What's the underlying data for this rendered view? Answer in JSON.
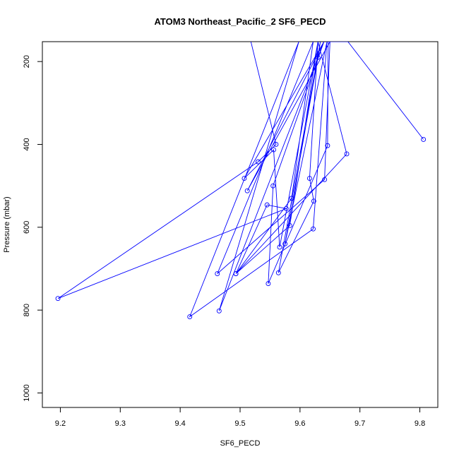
{
  "chart_data": {
    "type": "scatter",
    "title": "ATOM3 Northeast_Pacific_2 SF6_PECD",
    "xlabel": "SF6_PECD",
    "ylabel": "Pressure (mbar)",
    "xlim": [
      9.17,
      9.83
    ],
    "ylim": [
      1035,
      152
    ],
    "y_reversed": true,
    "x_ticks": [
      9.2,
      9.3,
      9.4,
      9.5,
      9.6,
      9.7,
      9.8
    ],
    "x_tick_labels": [
      "9.2",
      "9.3",
      "9.4",
      "9.5",
      "9.6",
      "9.7",
      "9.8"
    ],
    "y_ticks": [
      200,
      400,
      600,
      800,
      1000
    ],
    "y_tick_labels": [
      "200",
      "400",
      "600",
      "800",
      "1000"
    ],
    "grid": false,
    "series": [
      {
        "color": "#0000ff",
        "marker": "open-circle",
        "connected": true,
        "points": [
          [
            9.518,
            152
          ],
          [
            9.56,
            400
          ],
          [
            9.53,
            442
          ],
          [
            9.196,
            772
          ],
          [
            9.577,
            555
          ],
          [
            9.545,
            546
          ],
          [
            9.493,
            712
          ],
          [
            9.583,
            596
          ],
          [
            9.63,
            152
          ],
          [
            9.566,
            648
          ],
          [
            9.556,
            413
          ],
          [
            9.507,
            482
          ],
          [
            9.64,
            152
          ],
          [
            9.512,
            512
          ],
          [
            9.65,
            152
          ],
          [
            9.641,
            485
          ],
          [
            9.462,
            712
          ],
          [
            9.622,
            152
          ],
          [
            9.586,
            530
          ],
          [
            9.493,
            712
          ],
          [
            9.678,
            423
          ],
          [
            9.63,
            152
          ],
          [
            9.616,
            482
          ],
          [
            9.623,
            537
          ],
          [
            9.564,
            710
          ],
          [
            9.634,
            152
          ],
          [
            9.63,
            190
          ],
          [
            9.575,
            640
          ],
          [
            9.645,
            152
          ],
          [
            9.622,
            604
          ],
          [
            9.416,
            816
          ],
          [
            9.598,
            152
          ],
          [
            9.465,
            802
          ],
          [
            9.64,
            152
          ],
          [
            9.555,
            500
          ],
          [
            9.547,
            736
          ],
          [
            9.646,
            403
          ],
          [
            9.647,
            152
          ],
          [
            9.68,
            152
          ],
          [
            9.806,
            388
          ]
        ]
      }
    ]
  }
}
